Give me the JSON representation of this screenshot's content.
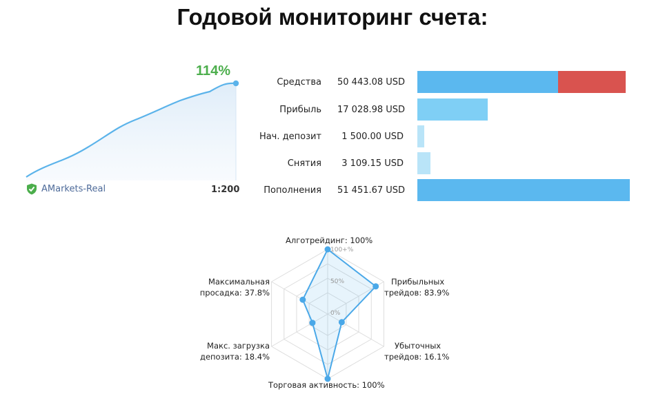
{
  "title": "Годовой мониторинг счета:",
  "growth": {
    "value": "114%",
    "color": "#4cae4c",
    "line_color": "#5bb3ea",
    "broker": "AMarkets-Real",
    "leverage": "1:200",
    "verified_icon": "shield-check-icon"
  },
  "balance": {
    "colors": {
      "blue": "#5bb8ef",
      "red": "#d9534f",
      "light": "#7fcff5",
      "pale": "#b9e4f8"
    },
    "rows": [
      {
        "label": "Средства",
        "value": "50 443.08 USD"
      },
      {
        "label": "Прибыль",
        "value": "17 028.98 USD"
      },
      {
        "label": "Нач. депозит",
        "value": "1 500.00 USD"
      },
      {
        "label": "Снятия",
        "value": "3 109.15 USD"
      },
      {
        "label": "Пополнения",
        "value": "51 451.67 USD"
      }
    ]
  },
  "radar": {
    "ticks": {
      "t100": "100+%",
      "t50": "50%",
      "t0": "0%"
    },
    "axes": [
      {
        "label_1": "Алготрейдинг: 100%",
        "label_2": "",
        "value": 100
      },
      {
        "label_1": "Прибыльных",
        "label_2": "трейдов: 83.9%",
        "value": 83.9
      },
      {
        "label_1": "Убыточных",
        "label_2": "трейдов: 16.1%",
        "value": 16.1
      },
      {
        "label_1": "Торговая активность: 100%",
        "label_2": "",
        "value": 100
      },
      {
        "label_1": "Макс. загрузка",
        "label_2": "депозита: 18.4%",
        "value": 18.4
      },
      {
        "label_1": "Максимальная",
        "label_2": "просадка: 37.8%",
        "value": 37.8
      }
    ]
  }
}
